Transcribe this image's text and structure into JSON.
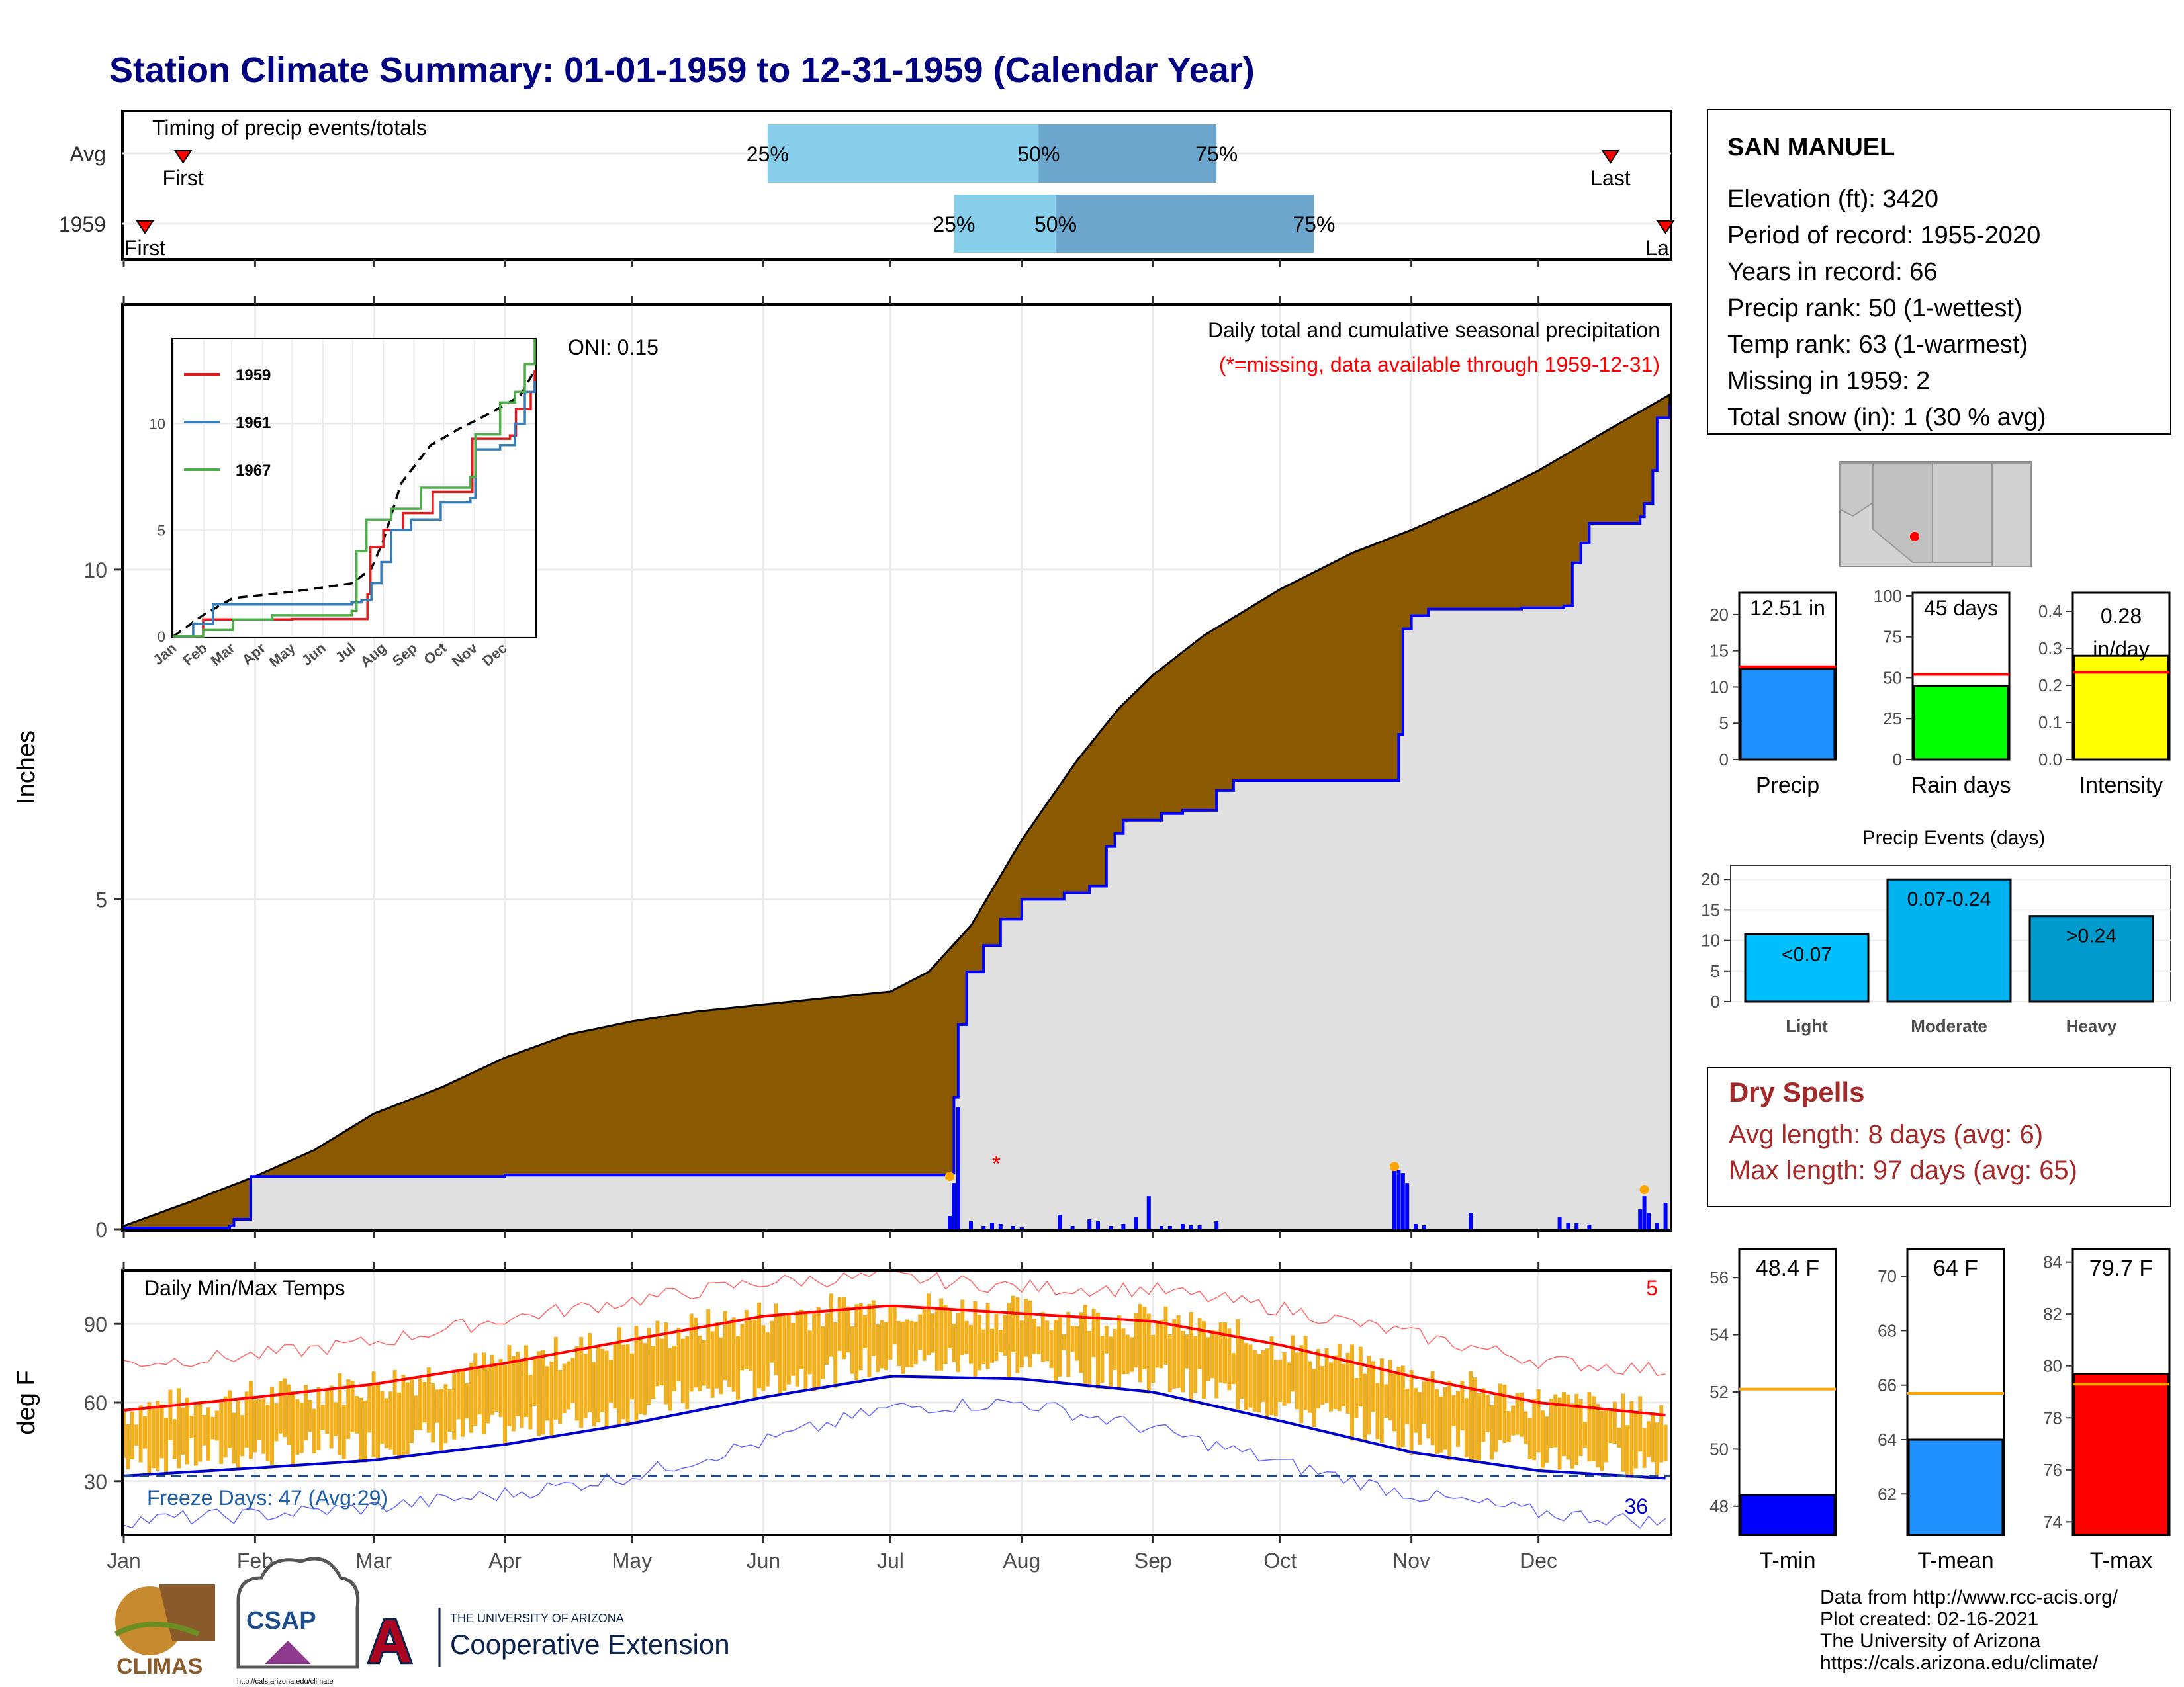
{
  "title": "Station Climate Summary: 01-01-1959 to 12-31-1959 (Calendar Year)",
  "colors": {
    "title": "#000080",
    "precip_fill": "#8B5A00",
    "normal_fill": "#E0E0E0",
    "precip_line": "#0000FF",
    "temp_bar": "#F0B020",
    "max_line": "#FF0000",
    "min_line": "#0000CC",
    "light_blue": "#87CEEB",
    "steel_blue": "#6CA6CD",
    "dry_spell": "#A52A2A"
  },
  "timing": {
    "title": "Timing of precip events/totals",
    "rows": [
      {
        "label": "Avg",
        "first_day": 14,
        "p25_day": 152,
        "p50_day": 216,
        "p75_day": 258,
        "last_day": 351,
        "first_label": "First",
        "last_label": "Last",
        "p25_label": "25%",
        "p50_label": "50%",
        "p75_label": "75%"
      },
      {
        "label": "1959",
        "first_day": 5,
        "p25_day": 196,
        "p50_day": 220,
        "p75_day": 281,
        "last_day": 364,
        "first_label": "First",
        "last_label": "Last",
        "p25_label": "25%",
        "p50_label": "50%",
        "p75_label": "75%"
      }
    ]
  },
  "station": {
    "name": "SAN MANUEL",
    "lines": [
      "Elevation (ft): 3420",
      "Period of record: 1955-2020",
      "Years in record: 66",
      "Precip rank: 50 (1-wettest)",
      "Temp rank: 63 (1-warmest)",
      "Missing in 1959: 2",
      "Total snow (in): 1 (30 % avg)"
    ]
  },
  "main_chart": {
    "ylabel": "Inches",
    "oni": "ONI: 0.15",
    "caption": "Daily total and cumulative seasonal precipitation",
    "missing_note": "(*=missing, data available through 1959-12-31)",
    "y_ticks": [
      0,
      5,
      10
    ],
    "ylim": [
      0,
      14
    ],
    "month_labels": [
      "Jan",
      "Feb",
      "Mar",
      "Apr",
      "May",
      "Jun",
      "Jul",
      "Aug",
      "Sep",
      "Oct",
      "Nov",
      "Dec"
    ],
    "normal_cumulative": [
      [
        0,
        0.05
      ],
      [
        15,
        0.4
      ],
      [
        31,
        0.8
      ],
      [
        45,
        1.2
      ],
      [
        59,
        1.75
      ],
      [
        75,
        2.15
      ],
      [
        90,
        2.6
      ],
      [
        105,
        2.95
      ],
      [
        120,
        3.15
      ],
      [
        135,
        3.3
      ],
      [
        150,
        3.4
      ],
      [
        165,
        3.5
      ],
      [
        181,
        3.6
      ],
      [
        190,
        3.9
      ],
      [
        200,
        4.6
      ],
      [
        212,
        5.9
      ],
      [
        225,
        7.1
      ],
      [
        235,
        7.9
      ],
      [
        243,
        8.4
      ],
      [
        255,
        9.0
      ],
      [
        273,
        9.7
      ],
      [
        290,
        10.25
      ],
      [
        304,
        10.6
      ],
      [
        320,
        11.05
      ],
      [
        334,
        11.5
      ],
      [
        350,
        12.1
      ],
      [
        365,
        12.65
      ]
    ],
    "observed_cumulative": [
      [
        0,
        0.02
      ],
      [
        25,
        0.05
      ],
      [
        26,
        0.15
      ],
      [
        30,
        0.8
      ],
      [
        90,
        0.82
      ],
      [
        160,
        0.82
      ],
      [
        180,
        0.82
      ],
      [
        195,
        0.85
      ],
      [
        196,
        2.0
      ],
      [
        197,
        3.1
      ],
      [
        199,
        3.9
      ],
      [
        203,
        4.3
      ],
      [
        207,
        4.7
      ],
      [
        212,
        5.0
      ],
      [
        222,
        5.1
      ],
      [
        228,
        5.2
      ],
      [
        232,
        5.8
      ],
      [
        234,
        6.0
      ],
      [
        236,
        6.2
      ],
      [
        245,
        6.3
      ],
      [
        250,
        6.35
      ],
      [
        258,
        6.65
      ],
      [
        262,
        6.8
      ],
      [
        300,
        6.8
      ],
      [
        301,
        7.5
      ],
      [
        302,
        9.1
      ],
      [
        304,
        9.3
      ],
      [
        308,
        9.4
      ],
      [
        330,
        9.42
      ],
      [
        340,
        9.45
      ],
      [
        342,
        10.1
      ],
      [
        344,
        10.4
      ],
      [
        346,
        10.7
      ],
      [
        358,
        10.8
      ],
      [
        359,
        11.0
      ],
      [
        361,
        11.5
      ],
      [
        362,
        12.3
      ],
      [
        365,
        12.51
      ]
    ],
    "daily_bars": [
      [
        195,
        0.2
      ],
      [
        196,
        0.7
      ],
      [
        197,
        1.85
      ],
      [
        200,
        0.12
      ],
      [
        203,
        0.05
      ],
      [
        205,
        0.1
      ],
      [
        207,
        0.08
      ],
      [
        210,
        0.05
      ],
      [
        212,
        0.03
      ],
      [
        221,
        0.22
      ],
      [
        224,
        0.05
      ],
      [
        228,
        0.15
      ],
      [
        230,
        0.12
      ],
      [
        233,
        0.05
      ],
      [
        236,
        0.08
      ],
      [
        239,
        0.18
      ],
      [
        242,
        0.5
      ],
      [
        245,
        0.05
      ],
      [
        247,
        0.05
      ],
      [
        250,
        0.08
      ],
      [
        252,
        0.06
      ],
      [
        254,
        0.06
      ],
      [
        258,
        0.12
      ],
      [
        300,
        0.95
      ],
      [
        301,
        0.9
      ],
      [
        302,
        0.85
      ],
      [
        303,
        0.7
      ],
      [
        305,
        0.08
      ],
      [
        307,
        0.06
      ],
      [
        318,
        0.25
      ],
      [
        339,
        0.18
      ],
      [
        341,
        0.1
      ],
      [
        343,
        0.09
      ],
      [
        346,
        0.07
      ],
      [
        358,
        0.3
      ],
      [
        359,
        0.5
      ],
      [
        360,
        0.25
      ],
      [
        362,
        0.1
      ],
      [
        364,
        0.4
      ]
    ],
    "heavy_markers": [
      [
        195,
        0.8
      ],
      [
        300,
        0.95
      ],
      [
        359,
        0.6
      ]
    ],
    "missing_marker": [
      206,
      1.0
    ],
    "inset": {
      "y_ticks": [
        0,
        5,
        10
      ],
      "month_labels": [
        "Jan",
        "Feb",
        "Mar",
        "Apr",
        "May",
        "Jun",
        "Jul",
        "Aug",
        "Sep",
        "Oct",
        "Nov",
        "Dec"
      ],
      "legend": [
        "1959",
        "1961",
        "1967"
      ],
      "series": [
        {
          "name": "1959",
          "color": "#E41A1C",
          "points": [
            [
              0,
              0
            ],
            [
              30,
              0.8
            ],
            [
              120,
              0.82
            ],
            [
              180,
              0.82
            ],
            [
              196,
              2.0
            ],
            [
              199,
              4.2
            ],
            [
              212,
              5.0
            ],
            [
              232,
              5.8
            ],
            [
              262,
              6.8
            ],
            [
              300,
              6.8
            ],
            [
              302,
              9.3
            ],
            [
              340,
              9.45
            ],
            [
              346,
              10.7
            ],
            [
              361,
              11.5
            ],
            [
              365,
              12.51
            ]
          ]
        },
        {
          "name": "1961",
          "color": "#377EB8",
          "points": [
            [
              0,
              0
            ],
            [
              20,
              0.6
            ],
            [
              40,
              1.5
            ],
            [
              100,
              1.5
            ],
            [
              180,
              1.6
            ],
            [
              190,
              1.7
            ],
            [
              200,
              2.5
            ],
            [
              210,
              3.5
            ],
            [
              220,
              5.0
            ],
            [
              240,
              5.5
            ],
            [
              270,
              6.3
            ],
            [
              300,
              6.5
            ],
            [
              305,
              8.8
            ],
            [
              330,
              9.0
            ],
            [
              345,
              10.0
            ],
            [
              355,
              11.5
            ],
            [
              365,
              12.0
            ]
          ]
        },
        {
          "name": "1967",
          "color": "#4DAF4A",
          "points": [
            [
              0,
              0
            ],
            [
              30,
              0.3
            ],
            [
              60,
              0.8
            ],
            [
              100,
              1.0
            ],
            [
              180,
              1.2
            ],
            [
              185,
              4.0
            ],
            [
              195,
              5.5
            ],
            [
              220,
              6.0
            ],
            [
              250,
              7.0
            ],
            [
              300,
              7.5
            ],
            [
              305,
              9.5
            ],
            [
              330,
              11.0
            ],
            [
              345,
              11.5
            ],
            [
              355,
              12.8
            ],
            [
              365,
              14.5
            ]
          ]
        }
      ],
      "avg_series": [
        [
          0,
          0
        ],
        [
          30,
          1.0
        ],
        [
          60,
          1.8
        ],
        [
          120,
          2.1
        ],
        [
          181,
          2.5
        ],
        [
          200,
          3.2
        ],
        [
          212,
          4.5
        ],
        [
          230,
          7.2
        ],
        [
          260,
          9.0
        ],
        [
          290,
          9.8
        ],
        [
          320,
          10.5
        ],
        [
          350,
          11.3
        ],
        [
          365,
          12.5
        ]
      ]
    }
  },
  "temp_chart": {
    "ylabel": "deg F",
    "title": "Daily Min/Max Temps",
    "corner_count": "5",
    "freeze_label": "Freeze Days: 47 (Avg:29)",
    "freeze_count_right": "36",
    "y_ticks": [
      30,
      60,
      90
    ],
    "ylim": [
      10,
      110
    ],
    "freeze_line": 32,
    "month_labels": [
      "Jan",
      "Feb",
      "Mar",
      "Apr",
      "May",
      "Jun",
      "Jul",
      "Aug",
      "Sep",
      "Oct",
      "Nov",
      "Dec"
    ],
    "avg_max": [
      [
        0,
        57
      ],
      [
        31,
        62
      ],
      [
        59,
        67
      ],
      [
        90,
        75
      ],
      [
        120,
        84
      ],
      [
        151,
        93
      ],
      [
        181,
        97
      ],
      [
        212,
        94
      ],
      [
        243,
        91
      ],
      [
        273,
        82
      ],
      [
        304,
        70
      ],
      [
        334,
        60
      ],
      [
        365,
        55
      ]
    ],
    "avg_min": [
      [
        0,
        32
      ],
      [
        31,
        35
      ],
      [
        59,
        38
      ],
      [
        90,
        44
      ],
      [
        120,
        52
      ],
      [
        151,
        62
      ],
      [
        181,
        70
      ],
      [
        212,
        69
      ],
      [
        243,
        64
      ],
      [
        273,
        53
      ],
      [
        304,
        41
      ],
      [
        334,
        34
      ],
      [
        365,
        31
      ]
    ],
    "rec_max": [
      [
        0,
        75
      ],
      [
        31,
        78
      ],
      [
        59,
        83
      ],
      [
        90,
        92
      ],
      [
        120,
        99
      ],
      [
        151,
        106
      ],
      [
        181,
        108
      ],
      [
        212,
        104
      ],
      [
        243,
        103
      ],
      [
        273,
        96
      ],
      [
        304,
        86
      ],
      [
        334,
        76
      ],
      [
        365,
        72
      ]
    ],
    "rec_min": [
      [
        0,
        15
      ],
      [
        31,
        17
      ],
      [
        59,
        20
      ],
      [
        90,
        25
      ],
      [
        120,
        32
      ],
      [
        151,
        45
      ],
      [
        181,
        58
      ],
      [
        212,
        60
      ],
      [
        243,
        50
      ],
      [
        273,
        37
      ],
      [
        304,
        25
      ],
      [
        334,
        18
      ],
      [
        365,
        14
      ]
    ]
  },
  "precip_totals": {
    "precip": {
      "label": "Precip",
      "value_label": "12.51 in",
      "value": 12.51,
      "avg": 12.8,
      "y_ticks": [
        0,
        5,
        10,
        15,
        20
      ],
      "ylim": [
        0,
        23
      ],
      "color": "#1E90FF"
    },
    "rain_days": {
      "label": "Rain days",
      "value_label": "45 days",
      "value": 45,
      "avg": 52,
      "y_ticks": [
        0,
        25,
        50,
        75,
        100
      ],
      "ylim": [
        0,
        102
      ],
      "color": "#00FF00"
    },
    "intensity": {
      "label": "Intensity",
      "value_label": "0.28",
      "value_label2": "in/day",
      "value": 0.28,
      "avg": 0.235,
      "y_ticks": [
        0.0,
        0.1,
        0.2,
        0.3,
        0.4
      ],
      "ylim": [
        0,
        0.45
      ],
      "color": "#FFFF00"
    }
  },
  "precip_events": {
    "title": "Precip Events (days)",
    "y_ticks": [
      0,
      5,
      10,
      15,
      20
    ],
    "ylim": [
      0,
      21
    ],
    "categories": [
      "Light",
      "Moderate",
      "Heavy"
    ],
    "bar_labels": [
      "<0.07",
      "0.07-0.24",
      ">0.24"
    ],
    "values": [
      11,
      20,
      14
    ],
    "colors": [
      "#00BFFF",
      "#00B2EE",
      "#009ACD"
    ]
  },
  "dry_spells": {
    "title": "Dry Spells",
    "avg_line": "Avg length: 8 days (avg: 6)",
    "max_line": "Max length: 97 days (avg: 65)"
  },
  "temp_totals": {
    "tmin": {
      "label": "T-min",
      "value_label": "48.4 F",
      "value": 48.4,
      "avg": 52.1,
      "y_ticks": [
        48,
        50,
        52,
        54,
        56
      ],
      "ylim": [
        47,
        57
      ],
      "color": "#0000FF"
    },
    "tmean": {
      "label": "T-mean",
      "value_label": "64 F",
      "value": 64.0,
      "avg": 65.7,
      "y_ticks": [
        62,
        64,
        66,
        68,
        70
      ],
      "ylim": [
        60.5,
        71
      ],
      "color": "#1E90FF"
    },
    "tmax": {
      "label": "T-max",
      "value_label": "79.7 F",
      "value": 79.7,
      "avg": 79.3,
      "y_ticks": [
        74,
        76,
        78,
        80,
        82,
        84
      ],
      "ylim": [
        73.5,
        84.5
      ],
      "color": "#FF0000"
    }
  },
  "footer": {
    "lines": [
      "Data from http://www.rcc-acis.org/",
      "Plot created: 02-16-2021",
      "The University of Arizona",
      "https://cals.arizona.edu/climate/"
    ],
    "climas": "CLIMAS",
    "csap": "CSAP",
    "csap_url": "http://cals.arizona.edu/climate",
    "ua_small": "THE UNIVERSITY OF ARIZONA",
    "ua_big": "Cooperative Extension",
    "ua_letter": "A"
  }
}
